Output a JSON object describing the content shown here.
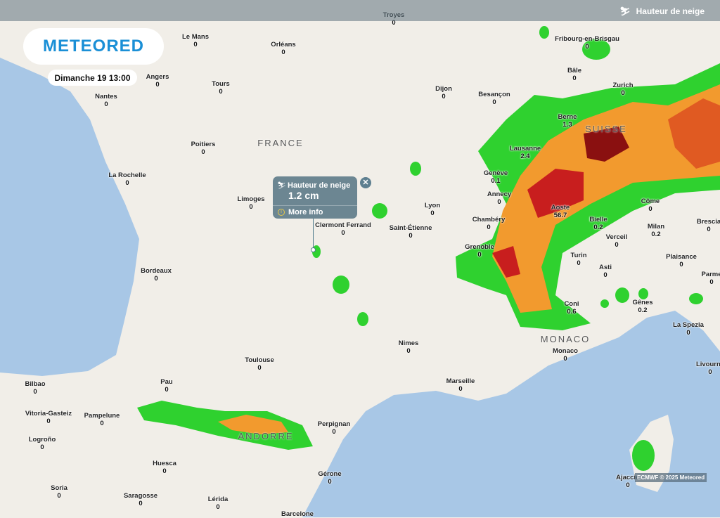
{
  "header": {
    "layer_icon": "snow-depth-icon",
    "layer_label": "Hauteur de neige"
  },
  "logo": "METEORED",
  "date": "Dimanche 19 13:00",
  "popup": {
    "title": "Hauteur de neige",
    "value": "1.2 cm",
    "more_info": "More info",
    "close_icon": "close-icon"
  },
  "credit": "ECMWF © 2025 Meteored",
  "countries": {
    "france": "FRANCE",
    "suisse": "SUISSE",
    "andorre": "ANDORRE",
    "monaco": "MONACO"
  },
  "colors": {
    "sea": "#a8c7e6",
    "land": "#f1eee8",
    "snow_low": "#2fd12f",
    "snow_mid": "#f29a2e",
    "snow_high": "#c81e1e",
    "snow_max": "#7a0a0a"
  },
  "cities": [
    {
      "name": "Troyes",
      "value": "0"
    },
    {
      "name": "Le Mans",
      "value": "0"
    },
    {
      "name": "Orléans",
      "value": "0"
    },
    {
      "name": "Angers",
      "value": "0"
    },
    {
      "name": "Tours",
      "value": "0"
    },
    {
      "name": "Nantes",
      "value": "0"
    },
    {
      "name": "Dijon",
      "value": "0"
    },
    {
      "name": "Besançon",
      "value": "0"
    },
    {
      "name": "Fribourg-en-Brisgau",
      "value": "0"
    },
    {
      "name": "Bâle",
      "value": "0"
    },
    {
      "name": "Zurich",
      "value": "0"
    },
    {
      "name": "Berne",
      "value": "1.3"
    },
    {
      "name": "Poitiers",
      "value": "0"
    },
    {
      "name": "Lausanne",
      "value": "2.4"
    },
    {
      "name": "Genève",
      "value": "0.1"
    },
    {
      "name": "La Rochelle",
      "value": "0"
    },
    {
      "name": "Annecy",
      "value": "0"
    },
    {
      "name": "Limoges",
      "value": "0"
    },
    {
      "name": "Clermont Ferrand",
      "value": "0"
    },
    {
      "name": "Lyon",
      "value": "0"
    },
    {
      "name": "Aoste",
      "value": "56.7"
    },
    {
      "name": "Côme",
      "value": "0"
    },
    {
      "name": "Chambéry",
      "value": "0"
    },
    {
      "name": "Bielle",
      "value": "0.2"
    },
    {
      "name": "Saint-Étienne",
      "value": "0"
    },
    {
      "name": "Milan",
      "value": "0.2"
    },
    {
      "name": "Brescia",
      "value": "0"
    },
    {
      "name": "Verceil",
      "value": "0"
    },
    {
      "name": "Grenoble",
      "value": "0"
    },
    {
      "name": "Turin",
      "value": "0"
    },
    {
      "name": "Plaisance",
      "value": "0"
    },
    {
      "name": "Bordeaux",
      "value": "0"
    },
    {
      "name": "Asti",
      "value": "0"
    },
    {
      "name": "Parme",
      "value": "0"
    },
    {
      "name": "Coni",
      "value": "0.6"
    },
    {
      "name": "Gênes",
      "value": "0.2"
    },
    {
      "name": "La Spezia",
      "value": "0"
    },
    {
      "name": "Nimes",
      "value": "0"
    },
    {
      "name": "Monaco",
      "value": "0"
    },
    {
      "name": "Livourne",
      "value": "0"
    },
    {
      "name": "Toulouse",
      "value": "0"
    },
    {
      "name": "Bilbao",
      "value": "0"
    },
    {
      "name": "Pau",
      "value": "0"
    },
    {
      "name": "Marseille",
      "value": "0"
    },
    {
      "name": "Vitoria-Gasteiz",
      "value": "0"
    },
    {
      "name": "Pampelune",
      "value": "0"
    },
    {
      "name": "Perpignan",
      "value": "0"
    },
    {
      "name": "Logroño",
      "value": "0"
    },
    {
      "name": "Huesca",
      "value": "0"
    },
    {
      "name": "Gérone",
      "value": "0"
    },
    {
      "name": "Soria",
      "value": "0"
    },
    {
      "name": "Saragosse",
      "value": "0"
    },
    {
      "name": "Lérida",
      "value": "0"
    },
    {
      "name": "Barcelone",
      "value": ""
    },
    {
      "name": "Ajaccio",
      "value": "0"
    }
  ]
}
